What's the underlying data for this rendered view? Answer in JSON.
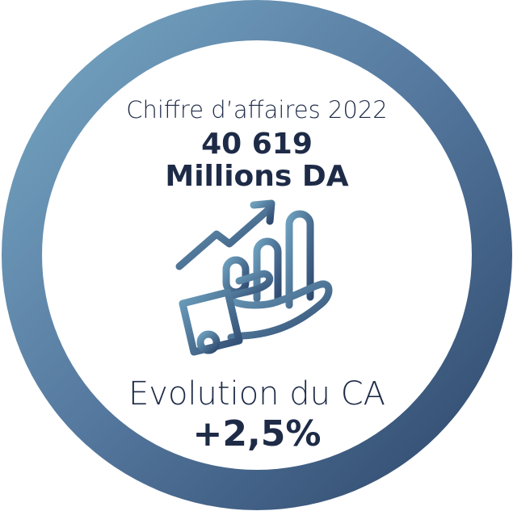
{
  "header": {
    "title": "Chiffre d’affaires 2022"
  },
  "revenue": {
    "amount": "40 619",
    "unit": "Millions DA"
  },
  "evolution": {
    "label": "Evolution du CA",
    "value": "+2,5%"
  }
}
